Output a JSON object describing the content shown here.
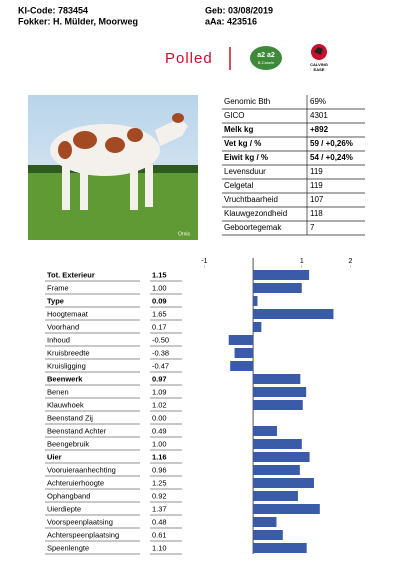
{
  "header": {
    "ki_code": "KI-Code: 783454",
    "fokker": "Fokker: H. Mülder, Moorweg",
    "geb": "Geb: 03/08/2019",
    "aaa": "aAa: 423516"
  },
  "logos": {
    "polled": "Polled",
    "a2": "a2 a2",
    "casein": "B-Casein",
    "calving": "CALVING",
    "ease": "EASE"
  },
  "photo": {
    "credit": "Ornis"
  },
  "info_table": {
    "rows": [
      [
        "Genomic Bth",
        "69%"
      ],
      [
        "GICO",
        "4301"
      ],
      [
        "Melk kg",
        "+892"
      ],
      [
        "Vet kg / %",
        "59 / +0,26%"
      ],
      [
        "Eiwit kg / %",
        "54 / +0,24%"
      ],
      [
        "Levensduur",
        "119"
      ],
      [
        "Celgetal",
        "119"
      ],
      [
        "Vruchtbaarheid",
        "107"
      ],
      [
        "Klauwgezondheid",
        "118"
      ],
      [
        "Geboortegemak",
        "7"
      ]
    ],
    "bold_rows": [
      2,
      3,
      4
    ]
  },
  "chart_data": {
    "type": "bar",
    "orientation": "horizontal",
    "categories": [
      "Tot. Exterieur",
      "Frame",
      "Type",
      "Hoogtemaat",
      "Voorhand",
      "Inhoud",
      "Kruisbreedte",
      "Kruisligging",
      "Beenwerk",
      "Benen",
      "Klauwhoek",
      "Beenstand Zij",
      "Beenstand Achter",
      "Beengebruik",
      "Uier",
      "Vooruieraanhechting",
      "Achteruierhoogte",
      "Ophangband",
      "Uierdiepte",
      "Voorspeenplaatsing",
      "Achterspeenplaatsing",
      "Speenlengte"
    ],
    "values": [
      1.15,
      1.0,
      0.09,
      1.65,
      0.17,
      -0.5,
      -0.38,
      -0.47,
      0.97,
      1.09,
      1.02,
      0.0,
      0.49,
      1.0,
      1.16,
      0.96,
      1.25,
      0.92,
      1.37,
      0.48,
      0.61,
      1.1
    ],
    "value_labels": [
      "1.15",
      "1.00",
      "0.09",
      "1.65",
      "0.17",
      "-0.50",
      "-0.38",
      "-0.47",
      "0.97",
      "1.09",
      "1.02",
      "0.00",
      "0.49",
      "1.00",
      "1.16",
      "0.96",
      "1.25",
      "0.92",
      "1.37",
      "0.48",
      "0.61",
      "1.10"
    ],
    "bold_rows": [
      0,
      2,
      8,
      14
    ],
    "color": "#3a5ba8",
    "xlim": [
      -1.5,
      2.4
    ],
    "xticks": [
      -1,
      1,
      2
    ]
  }
}
